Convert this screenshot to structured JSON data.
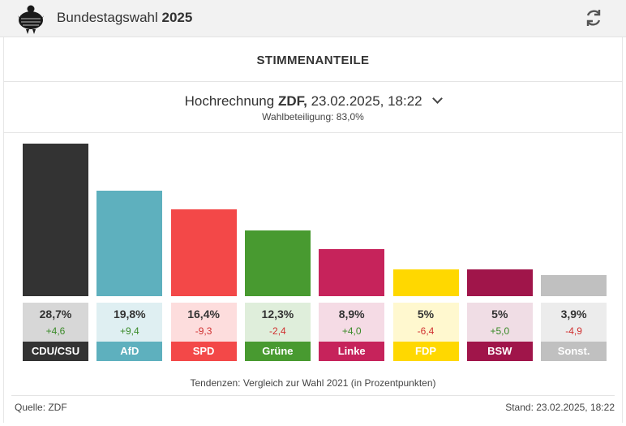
{
  "header": {
    "title_prefix": "Bundestagswahl",
    "title_year": "2025",
    "logo_icon": "federal-eagle-icon",
    "refresh_icon": "refresh-icon"
  },
  "section": {
    "title": "STIMMENANTEILE"
  },
  "selector": {
    "prefix": "Hochrechnung",
    "source": "ZDF,",
    "datetime": "23.02.2025, 18:22",
    "turnout": "Wahlbeteiligung: 83,0%"
  },
  "chart_data": {
    "type": "bar",
    "categories": [
      "CDU/CSU",
      "AfD",
      "SPD",
      "Grüne",
      "Linke",
      "FDP",
      "BSW",
      "Sonst."
    ],
    "values": [
      28.7,
      19.8,
      16.4,
      12.3,
      8.9,
      5.0,
      5.0,
      3.9
    ],
    "value_labels": [
      "28,7%",
      "19,8%",
      "16,4%",
      "12,3%",
      "8,9%",
      "5%",
      "5%",
      "3,9%"
    ],
    "changes": [
      4.6,
      9.4,
      -9.3,
      -2.4,
      4.0,
      -6.4,
      5.0,
      -4.9
    ],
    "change_labels": [
      "+4,6",
      "+9,4",
      "-9,3",
      "-2,4",
      "+4,0",
      "-6,4",
      "+5,0",
      "-4,9"
    ],
    "colors": [
      "#333333",
      "#5eb0be",
      "#f34848",
      "#489a30",
      "#c6235b",
      "#ffd800",
      "#a0154a",
      "#c0c0c0"
    ],
    "value_box_colors": [
      "#d7d7d7",
      "#dfeff2",
      "#fddddd",
      "#dfeedb",
      "#f5dbe5",
      "#fff8cf",
      "#f0dde5",
      "#ececec"
    ],
    "ylim": [
      0,
      28.7
    ],
    "footnote": "Tendenzen: Vergleich zur Wahl 2021 (in Prozentpunkten)"
  },
  "footer": {
    "source": "Quelle: ZDF",
    "stand": "Stand: 23.02.2025, 18:22"
  },
  "colors": {
    "positive": "#3a8a28",
    "negative": "#d03030"
  }
}
